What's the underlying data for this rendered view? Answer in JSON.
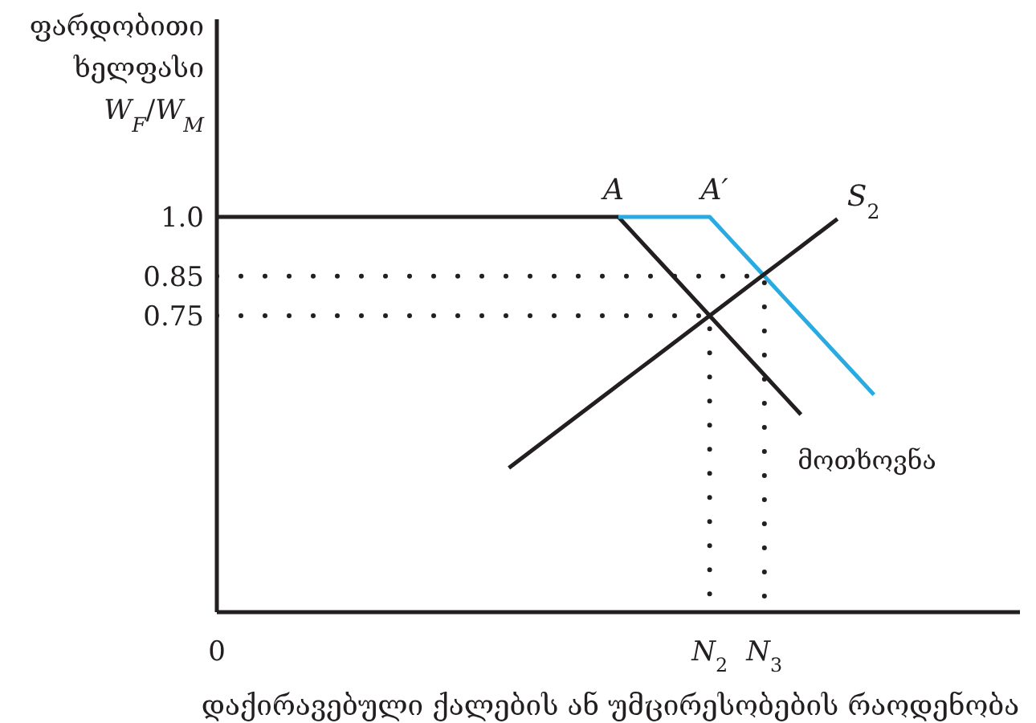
{
  "chart_data": {
    "type": "line",
    "xlabel": "დაქირავებული ქალების ან უმცირესობების რაოდენობა",
    "ylabel": "ფარდობითი ხელფასი W$_{F}$/W$_{M}$",
    "categories": [
      "0",
      null,
      null,
      null,
      null,
      null,
      null,
      null,
      null,
      null,
      null,
      null,
      null,
      null,
      null,
      null,
      null,
      null,
      null,
      null,
      null,
      null,
      null,
      null,
      null,
      null,
      null,
      "N$_{2}$",
      null,
      null,
      "N$_{3}$",
      null,
      null,
      null,
      null,
      null,
      null,
      null,
      null,
      null,
      null,
      null,
      null,
      null,
      null
    ],
    "ylim": [
      0,
      1.5
    ],
    "yticks": [
      {
        "value": 1,
        "label": "1.0"
      },
      0.85,
      0.75
    ],
    "marker": "none",
    "line_style": "solid",
    "series": [
      {
        "name": "მოთხოვნა",
        "color": "#231f20",
        "values": [
          1,
          1,
          1,
          1,
          1,
          1,
          1,
          1,
          1,
          1,
          1,
          1,
          1,
          1,
          1,
          1,
          1,
          1,
          1,
          1,
          1,
          1,
          1,
          0.95,
          0.9,
          0.85,
          0.8,
          0.75,
          0.7,
          0.65,
          0.6,
          0.55,
          0.5,
          null,
          null,
          null,
          null,
          null,
          null,
          null,
          null,
          null,
          null,
          null,
          null
        ]
      },
      {
        "color": "#29abe2",
        "values": [
          null,
          null,
          null,
          null,
          null,
          null,
          null,
          null,
          null,
          null,
          null,
          null,
          null,
          null,
          null,
          null,
          null,
          null,
          null,
          null,
          null,
          null,
          1,
          1,
          1,
          1,
          1,
          1,
          0.95,
          0.9,
          0.85,
          0.8,
          0.75,
          0.7,
          0.65,
          0.6,
          0.55,
          null,
          null,
          null,
          null,
          null,
          null,
          null,
          null
        ]
      },
      {
        "name": "S$_{2}$",
        "color": "#231f20",
        "values": [
          null,
          null,
          null,
          null,
          null,
          null,
          null,
          null,
          null,
          null,
          null,
          null,
          null,
          null,
          null,
          null,
          0.365,
          0.4,
          0.435,
          0.47,
          0.505,
          0.54,
          0.575,
          0.61,
          0.645,
          0.68,
          0.715,
          0.75,
          0.785,
          0.82,
          0.855,
          0.89,
          0.925,
          0.96,
          0.995,
          null,
          null,
          null,
          null,
          null,
          null,
          null,
          null,
          null,
          null
        ]
      },
      {
        "color": "#231f20",
        "x": [
          "0",
          "N$_{2}$",
          "N$_{2}$"
        ],
        "values": [
          0.75,
          0.75,
          0
        ],
        "line_style": "dotted"
      },
      {
        "color": "#231f20",
        "x": [
          "0",
          "N$_{3}$",
          "N$_{3}$"
        ],
        "values": [
          0.85,
          0.85,
          0
        ],
        "line_style": "dotted"
      }
    ],
    "annotations": [
      {
        "text": "A",
        "y": 1
      },
      {
        "text": "A′",
        "x": "N$_{2}$",
        "y": 1
      }
    ]
  }
}
